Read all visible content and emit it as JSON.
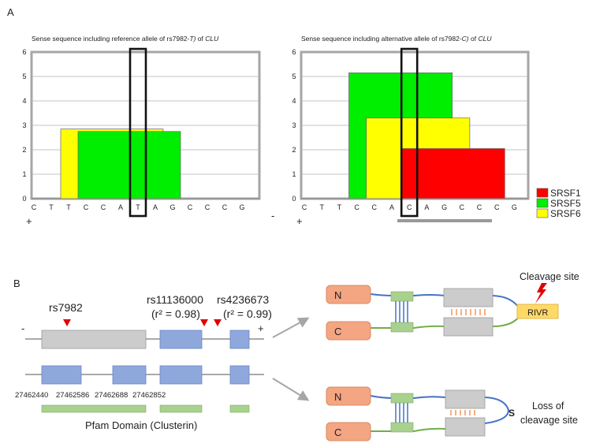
{
  "panel_a": {
    "label": "A",
    "left_title_pre": "Sense sequence including reference allele of rs7982-",
    "left_title_allele": "T)",
    "left_title_mid": " of ",
    "left_title_gene": "CLU",
    "right_title_pre": "Sense sequence including alternative allele of rs7982-",
    "right_title_allele": "C)",
    "right_title_mid": " of ",
    "right_title_gene": "CLU",
    "y_ticks": [
      "0",
      "1",
      "2",
      "3",
      "4",
      "5",
      "6"
    ],
    "left_sequence": [
      "C",
      "T",
      "T",
      "C",
      "C",
      "A",
      "T",
      "A",
      "G",
      "C",
      "C",
      "C",
      "G"
    ],
    "right_sequence": [
      "C",
      "T",
      "T",
      "C",
      "C",
      "A",
      "C",
      "A",
      "G",
      "C",
      "C",
      "C",
      "G"
    ],
    "plus_sign": "+",
    "minus_sign": "-",
    "legend": [
      {
        "label": "SRSF1",
        "color": "#ff0000"
      },
      {
        "label": "SRSF5",
        "color": "#00ee00"
      },
      {
        "label": "SRSF6",
        "color": "#ffff00"
      }
    ]
  },
  "chart_data": [
    {
      "type": "bar",
      "title": "Sense sequence including reference allele of rs7982-T) of CLU",
      "x": [
        "C",
        "T",
        "T",
        "C",
        "C",
        "A",
        "T",
        "A",
        "G",
        "C",
        "C",
        "C",
        "G"
      ],
      "ylim": [
        0,
        6
      ],
      "grid": true,
      "series": [
        {
          "name": "SRSF6",
          "start_index": 2,
          "end_index": 8,
          "value": 2.85,
          "color": "#ffff00"
        },
        {
          "name": "SRSF5",
          "start_index": 3,
          "end_index": 9,
          "value": 2.75,
          "color": "#00ee00"
        }
      ],
      "highlight_index": 6
    },
    {
      "type": "bar",
      "title": "Sense sequence including alternative allele of rs7982-C) of CLU",
      "x": [
        "C",
        "T",
        "T",
        "C",
        "C",
        "A",
        "C",
        "A",
        "G",
        "C",
        "C",
        "C",
        "G"
      ],
      "ylim": [
        0,
        6
      ],
      "grid": true,
      "series": [
        {
          "name": "SRSF5",
          "start_index": 3,
          "end_index": 9,
          "value": 5.15,
          "color": "#00ee00"
        },
        {
          "name": "SRSF6",
          "start_index": 4,
          "end_index": 10,
          "value": 3.3,
          "color": "#ffff00"
        },
        {
          "name": "SRSF1",
          "start_index": 6,
          "end_index": 12,
          "value": 2.05,
          "color": "#ff0000"
        }
      ],
      "highlight_index": 6
    }
  ],
  "panel_b": {
    "label": "B",
    "snp1": "rs7982",
    "snp2": "rs11136000",
    "snp2_r2": "(r² = 0.98)",
    "snp3": "rs4236673",
    "snp3_r2": "(r² = 0.99)",
    "minus_sign": "-",
    "plus_sign": "+",
    "coords": [
      "27462440",
      "27462586",
      "27462688",
      "27462852"
    ],
    "pfam_label": "Pfam Domain (Clusterin)",
    "n_label": "N",
    "c_label": "C",
    "rivr_label": "RIVR",
    "cleavage_label": "Cleavage site",
    "loss_label_1": "Loss of",
    "loss_label_2": "cleavage site",
    "s_label": "S"
  },
  "colors": {
    "exon": "#8fa8dc",
    "exon_gray": "#cccccc",
    "pfam": "#a9d18e",
    "terminal": "#f4a582",
    "rivr": "#ffd966",
    "snp_marker": "#e00000",
    "blue_chain": "#4472c4",
    "green_chain": "#70ad47"
  }
}
